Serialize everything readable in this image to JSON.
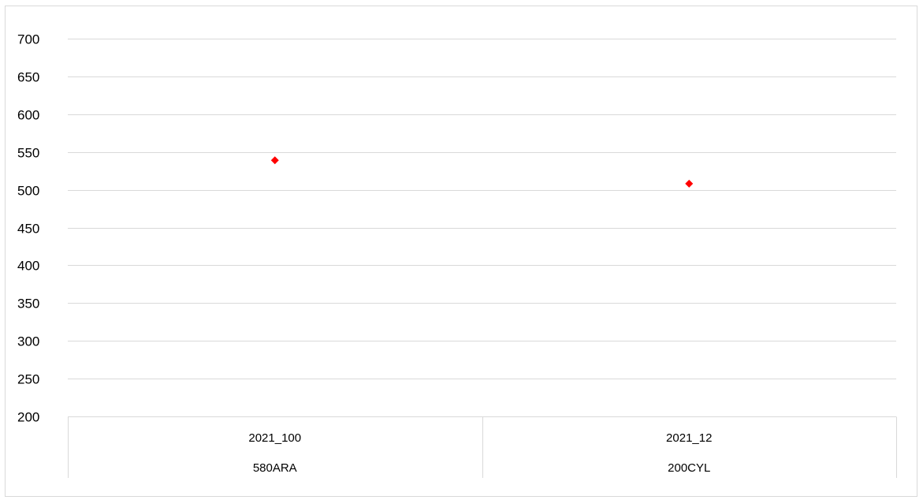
{
  "chart_data": {
    "type": "scatter",
    "title": "",
    "xlabel": "",
    "ylabel": "",
    "ylim": [
      200,
      700
    ],
    "yticks": [
      200,
      250,
      300,
      350,
      400,
      450,
      500,
      550,
      600,
      650,
      700
    ],
    "grid": true,
    "legend": "none",
    "marker": "diamond",
    "colors": {
      "marker": "#ff0000",
      "grid": "#d9d9d9",
      "axis": "#d9d9d9",
      "text": "#000000"
    },
    "categories": [
      {
        "line1": "2021_100",
        "line2": "580ARA"
      },
      {
        "line1": "2021_12",
        "line2": "200CYL"
      }
    ],
    "values": [
      539,
      508
    ]
  }
}
